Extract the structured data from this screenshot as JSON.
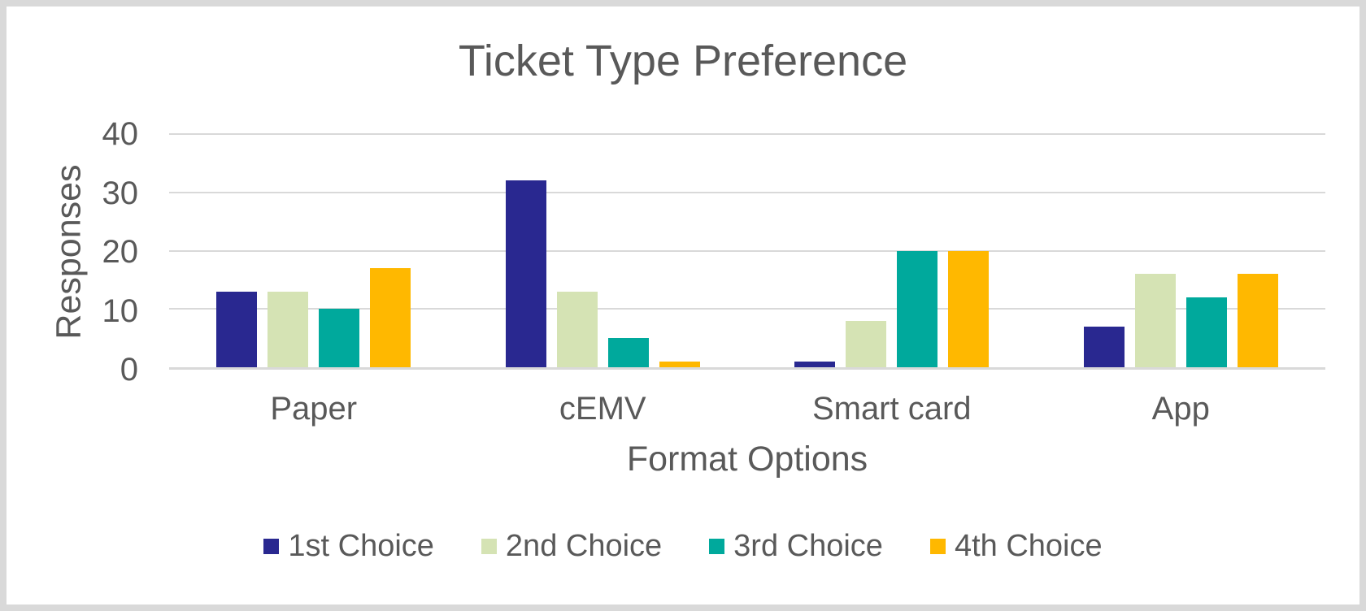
{
  "frame": {
    "background_color": "#ffffff",
    "border_color": "#d9d9d9"
  },
  "chart_data": {
    "type": "bar",
    "title": "Ticket Type Preference",
    "xlabel": "Format Options",
    "ylabel": "Responses",
    "categories": [
      "Paper",
      "cEMV",
      "Smart card",
      "App"
    ],
    "series": [
      {
        "name": "1st Choice",
        "color": "#292890",
        "values": [
          13,
          32,
          1,
          7
        ]
      },
      {
        "name": "2nd Choice",
        "color": "#D5E3B4",
        "values": [
          13,
          13,
          8,
          16
        ]
      },
      {
        "name": "3rd Choice",
        "color": "#00A99C",
        "values": [
          10,
          5,
          20,
          12
        ]
      },
      {
        "name": "4th Choice",
        "color": "#FFB800",
        "values": [
          17,
          1,
          20,
          16
        ]
      }
    ],
    "ylim": [
      0,
      40
    ],
    "yticks": [
      0,
      10,
      20,
      30,
      40
    ],
    "grid": "horizontal",
    "legend_position": "bottom",
    "text_color": "#595959",
    "gridline_color": "#D9D9D9"
  }
}
